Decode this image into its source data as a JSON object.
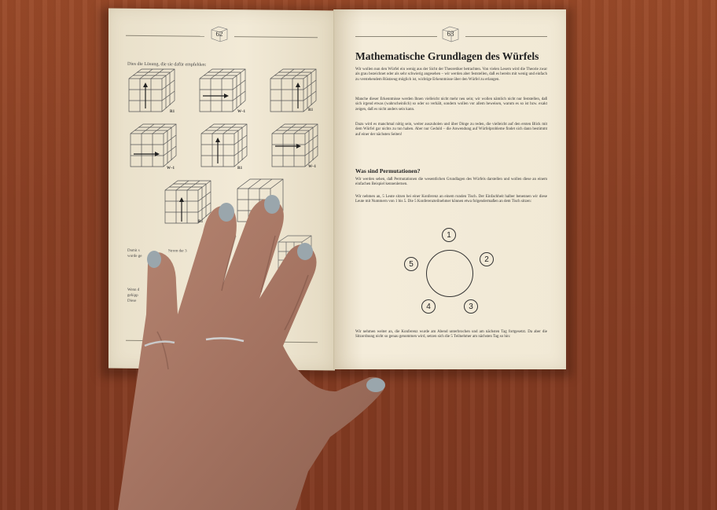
{
  "left_page": {
    "page_number": "62",
    "intro": "Dies die Lösung, die sie dafür empfehlen:",
    "cube_labels": [
      "R1",
      "W–1",
      "R1",
      "W–1",
      "R1",
      "W–1",
      "R1"
    ],
    "partial_text_1": "Damit s",
    "partial_text_1b": "Strom der 3",
    "partial_text_2": "wurde ge",
    "partial_text_3": "Wenn d",
    "partial_text_4": "gekipp",
    "partial_text_5": "Diese"
  },
  "right_page": {
    "page_number": "63",
    "title": "Mathematische Grundlagen des Würfels",
    "paragraph_1": "Wir wollen nun den Würfel ein wenig aus der Sicht der Theoretiker betrachten. Von vielen Lesern wird die Theorie zwar als grau bezeichnet oder als sehr schwierig angesehen – wir werden aber feststellen, daß es bereits mit wenig und einfach zu verstehendem Rüstzeug möglich ist, wichtige Erkenntnisse über den Würfel zu erlangen.",
    "paragraph_2": "Manche dieser Erkenntnisse werden Ihnen vielleicht nicht mehr neu sein; wir wollen nämlich nicht nur feststellen, daß sich irgend etwas (wahrscheinlich) so oder so verhält, sondern wollen vor allem beweisen, warum es so ist bzw. exakt zeigen, daß es nicht anders sein kann.",
    "paragraph_3": "Dazu wird es manchmal nötig sein, weiter auszuholen und über Dinge zu reden, die vielleicht auf den ersten Blick mit dem Würfel gar nichts zu tun haben. Aber nur Geduld – die Anwendung auf Würfelprobleme findet sich dann bestimmt auf einer der nächsten Seiten!",
    "subtitle": "Was sind Permutationen?",
    "paragraph_4": "Wir werden sehen, daß Permutationen die wesentlichen Grundlagen des Würfels darstellen und wollen diese an einem einfachen Beispiel kennenlernen.",
    "paragraph_5": "Wir nehmen an, 5 Leute sitzen bei einer Konferenz an einem runden Tisch. Der Einfachheit halber benennen wir diese Leute mit Nummern von 1 bis 5. Die 5 Konferenzteilnehmer können etwa folgendermaßen an dem Tisch sitzen:",
    "seats": [
      "1",
      "2",
      "3",
      "4",
      "5"
    ],
    "paragraph_6": "Wir nehmen weiter an, die Konferenz wurde am Abend unterbrochen und am nächsten Tag fortgesetzt. Da aber die Sitzordnung nicht so genau genommen wird, setzen sich die 5 Teilnehmer am nächsten Tag so hin:"
  },
  "colors": {
    "table": "#8a4024",
    "paper": "#efe7d3",
    "nail_polish": "#9aa6ac",
    "skin": "#a77865"
  }
}
